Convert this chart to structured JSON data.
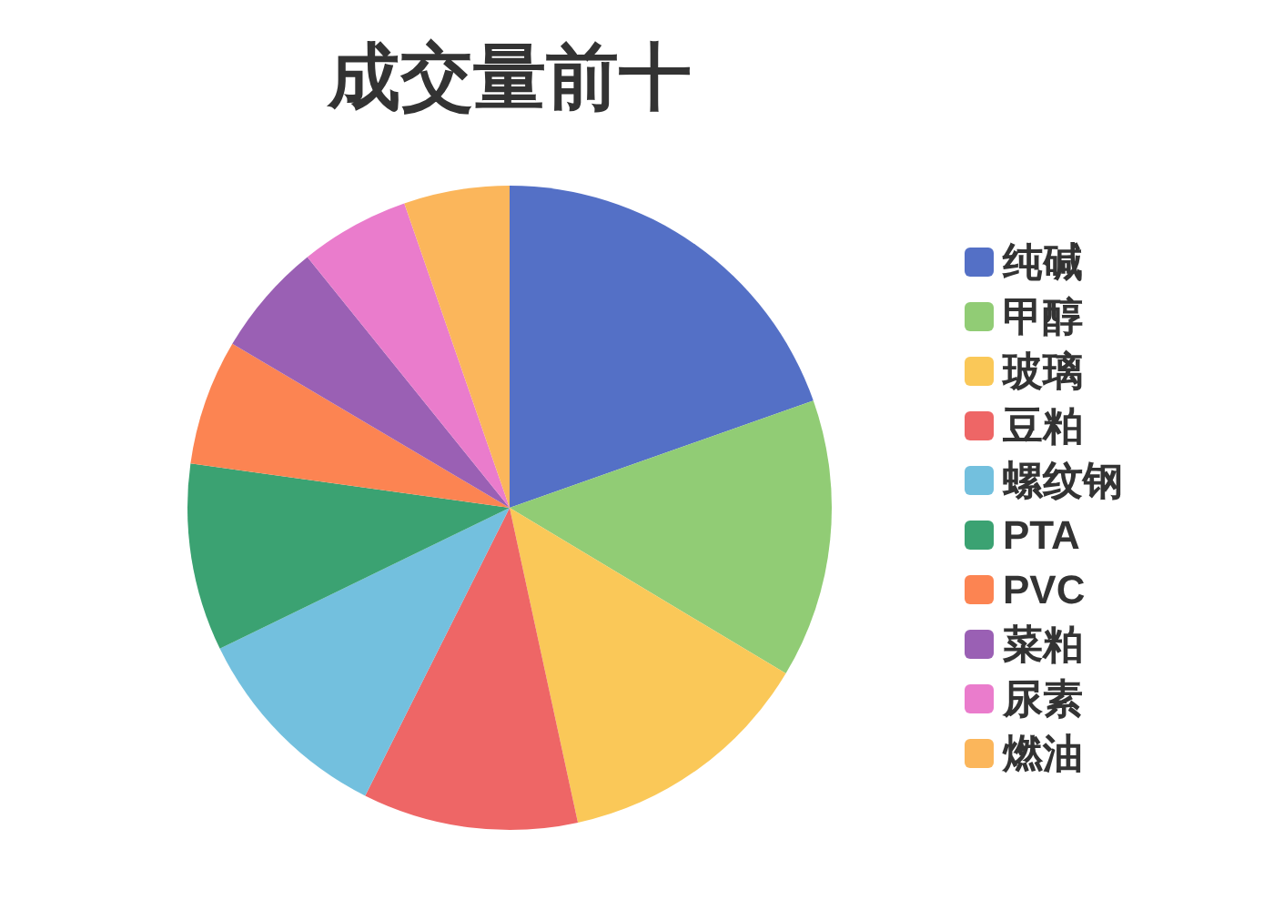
{
  "chart_data": {
    "type": "pie",
    "title": "成交量前十",
    "categories": [
      "纯碱",
      "甲醇",
      "玻璃",
      "豆粕",
      "螺纹钢",
      "PTA",
      "PVC",
      "菜粕",
      "尿素",
      "燃油"
    ],
    "values": [
      19.6,
      14.0,
      13.0,
      10.8,
      10.4,
      9.4,
      6.3,
      5.7,
      5.5,
      5.3
    ],
    "colors": [
      "#5470c6",
      "#91cc75",
      "#fac858",
      "#ee6666",
      "#73c0de",
      "#3ba272",
      "#fc8452",
      "#9a60b4",
      "#ea7ccc",
      "#fbb65b"
    ],
    "legend": "right"
  }
}
